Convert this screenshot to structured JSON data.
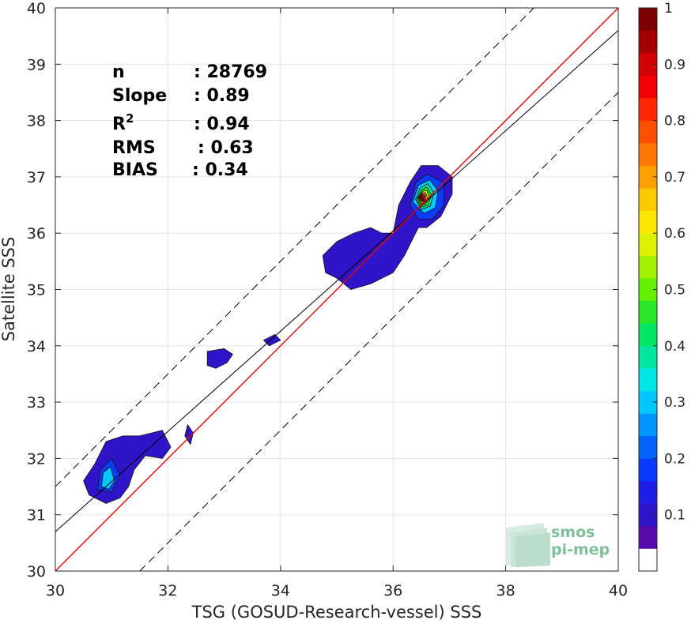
{
  "chart_data": {
    "type": "heatmap",
    "subtype": "2D density contour scatter",
    "xlabel": "TSG (GOSUD-Research-vessel) SSS",
    "ylabel": "Satellite SSS",
    "xlim": [
      30,
      40
    ],
    "ylim": [
      30,
      40
    ],
    "x_ticks": [
      "30",
      "32",
      "34",
      "36",
      "38",
      "40"
    ],
    "y_ticks": [
      "30",
      "31",
      "32",
      "33",
      "34",
      "35",
      "36",
      "37",
      "38",
      "39",
      "40"
    ],
    "grid": true,
    "stats": [
      {
        "label": "n",
        "value": ": 28769"
      },
      {
        "label": "Slope",
        "value": ": 0.89"
      },
      {
        "label": "R",
        "sup": "2",
        "value": ": 0.94"
      },
      {
        "label": "RMS",
        "value": ": 0.63"
      },
      {
        "label": "BIAS",
        "value": ": 0.34"
      }
    ],
    "lines": {
      "identity": {
        "slope": 1.0,
        "intercept": 0.0,
        "color": "#e60000"
      },
      "fit": {
        "slope": 0.89,
        "intercept": 4.0,
        "color": "#000000"
      },
      "bounds_offset": 1.5,
      "bounds_style": "dashed"
    },
    "density_regions": [
      {
        "level": 0.05,
        "points": [
          [
            36.0,
            36.0
          ],
          [
            36.1,
            36.5
          ],
          [
            36.3,
            36.9
          ],
          [
            36.5,
            37.2
          ],
          [
            36.8,
            37.2
          ],
          [
            37.05,
            37.0
          ],
          [
            37.05,
            36.7
          ],
          [
            36.85,
            36.3
          ],
          [
            36.6,
            36.1
          ],
          [
            36.45,
            36.1
          ],
          [
            36.2,
            35.6
          ],
          [
            36.0,
            35.3
          ],
          [
            35.6,
            35.1
          ],
          [
            35.25,
            35.0
          ],
          [
            35.0,
            35.2
          ],
          [
            34.8,
            35.3
          ],
          [
            34.75,
            35.6
          ],
          [
            35.0,
            35.85
          ],
          [
            35.3,
            36.0
          ],
          [
            35.6,
            36.1
          ],
          [
            35.8,
            36.0
          ]
        ]
      },
      {
        "level": 0.05,
        "points": [
          [
            30.5,
            31.6
          ],
          [
            30.7,
            31.9
          ],
          [
            30.9,
            32.3
          ],
          [
            31.2,
            32.4
          ],
          [
            31.5,
            32.4
          ],
          [
            31.9,
            32.5
          ],
          [
            32.05,
            32.2
          ],
          [
            31.9,
            32.0
          ],
          [
            31.6,
            32.05
          ],
          [
            31.4,
            31.8
          ],
          [
            31.3,
            31.5
          ],
          [
            31.15,
            31.3
          ],
          [
            30.9,
            31.2
          ],
          [
            30.6,
            31.35
          ]
        ]
      },
      {
        "level": 0.05,
        "points": [
          [
            32.7,
            33.65
          ],
          [
            32.7,
            33.9
          ],
          [
            33.0,
            33.95
          ],
          [
            33.15,
            33.85
          ],
          [
            33.05,
            33.7
          ],
          [
            32.85,
            33.6
          ]
        ]
      },
      {
        "level": 0.05,
        "points": [
          [
            33.7,
            34.1
          ],
          [
            33.9,
            34.2
          ],
          [
            34.0,
            34.1
          ],
          [
            33.8,
            34.0
          ]
        ]
      },
      {
        "level": 0.05,
        "points": [
          [
            32.35,
            32.6
          ],
          [
            32.45,
            32.45
          ],
          [
            32.4,
            32.25
          ],
          [
            32.3,
            32.4
          ]
        ]
      },
      {
        "level": 0.15,
        "points": [
          [
            36.3,
            36.5
          ],
          [
            36.4,
            36.9
          ],
          [
            36.6,
            37.05
          ],
          [
            36.9,
            36.9
          ],
          [
            36.9,
            36.5
          ],
          [
            36.7,
            36.25
          ],
          [
            36.45,
            36.25
          ]
        ]
      },
      {
        "level": 0.15,
        "points": [
          [
            30.75,
            31.45
          ],
          [
            30.8,
            31.8
          ],
          [
            31.0,
            32.0
          ],
          [
            31.15,
            31.7
          ],
          [
            31.0,
            31.4
          ]
        ]
      },
      {
        "level": 0.25,
        "points": [
          [
            36.35,
            36.55
          ],
          [
            36.45,
            36.85
          ],
          [
            36.65,
            36.95
          ],
          [
            36.8,
            36.75
          ],
          [
            36.75,
            36.45
          ],
          [
            36.55,
            36.35
          ]
        ]
      },
      {
        "level": 0.25,
        "points": [
          [
            30.82,
            31.5
          ],
          [
            30.85,
            31.75
          ],
          [
            30.98,
            31.85
          ],
          [
            31.05,
            31.6
          ],
          [
            30.95,
            31.45
          ]
        ]
      },
      {
        "level": 0.35,
        "points": [
          [
            36.4,
            36.6
          ],
          [
            36.48,
            36.8
          ],
          [
            36.62,
            36.88
          ],
          [
            36.72,
            36.72
          ],
          [
            36.66,
            36.48
          ],
          [
            36.5,
            36.42
          ]
        ]
      },
      {
        "level": 0.45,
        "points": [
          [
            36.42,
            36.6
          ],
          [
            36.5,
            36.76
          ],
          [
            36.6,
            36.82
          ],
          [
            36.68,
            36.68
          ],
          [
            36.62,
            36.5
          ],
          [
            36.5,
            36.46
          ]
        ]
      },
      {
        "level": 0.55,
        "points": [
          [
            36.44,
            36.62
          ],
          [
            36.52,
            36.74
          ],
          [
            36.6,
            36.76
          ],
          [
            36.64,
            36.64
          ],
          [
            36.58,
            36.52
          ],
          [
            36.5,
            36.5
          ]
        ]
      },
      {
        "level": 0.65,
        "points": [
          [
            36.45,
            36.63
          ],
          [
            36.52,
            36.72
          ],
          [
            36.58,
            36.72
          ],
          [
            36.61,
            36.62
          ],
          [
            36.56,
            36.54
          ],
          [
            36.5,
            36.53
          ]
        ]
      },
      {
        "level": 0.75,
        "points": [
          [
            36.46,
            36.63
          ],
          [
            36.52,
            36.7
          ],
          [
            36.57,
            36.69
          ],
          [
            36.58,
            36.6
          ],
          [
            36.53,
            36.55
          ]
        ]
      },
      {
        "level": 0.85,
        "points": [
          [
            36.47,
            36.62
          ],
          [
            36.52,
            36.68
          ],
          [
            36.56,
            36.66
          ],
          [
            36.55,
            36.58
          ],
          [
            36.5,
            36.57
          ]
        ]
      },
      {
        "level": 0.95,
        "points": [
          [
            36.49,
            36.61
          ],
          [
            36.52,
            36.65
          ],
          [
            36.54,
            36.62
          ],
          [
            36.52,
            36.58
          ]
        ]
      }
    ]
  },
  "colorbar": {
    "ticks": [
      "0.1",
      "0.2",
      "0.3",
      "0.4",
      "0.5",
      "0.6",
      "0.7",
      "0.8",
      "0.9",
      "1"
    ],
    "range": [
      0,
      1
    ],
    "colors": [
      "#ffffff",
      "#5a0aaa",
      "#2f14c8",
      "#1e1ee6",
      "#0a3cff",
      "#0064ff",
      "#0096ff",
      "#00c8ff",
      "#00e6e6",
      "#00e6a0",
      "#00e664",
      "#28e628",
      "#64f000",
      "#a0f000",
      "#dcf000",
      "#ffe600",
      "#ffc800",
      "#ffa000",
      "#ff7800",
      "#ff5000",
      "#ff2800",
      "#f00000",
      "#d20000",
      "#a50000",
      "#7d0000"
    ]
  },
  "logo": {
    "line1": "smos",
    "line2": "pi-mep"
  }
}
